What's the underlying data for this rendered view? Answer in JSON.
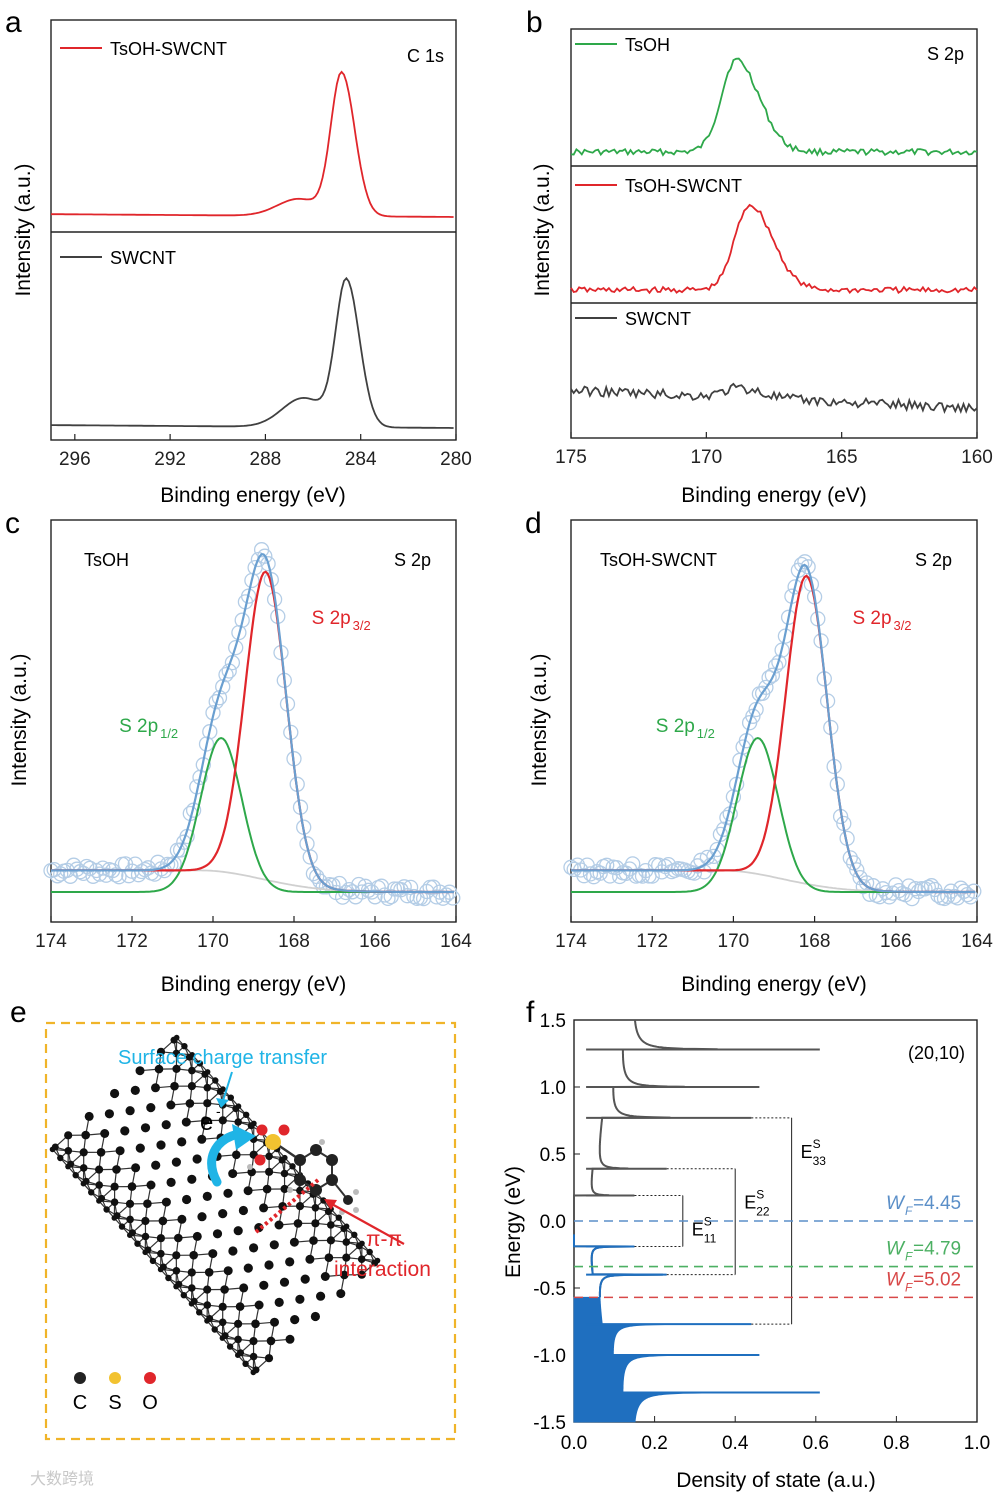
{
  "colors": {
    "red": "#e0262b",
    "green": "#2ea84a",
    "black": "#404040",
    "blue": "#6a9fd0",
    "envelope": "#cfcfcf",
    "fill_blue": "#1f6fbf",
    "dash_blue": "#5b8fc8",
    "dash_green": "#4cb063",
    "dash_red": "#d84848",
    "frame": "#f0b429",
    "cyan": "#1fb4e6"
  },
  "watermark": "大数跨境",
  "chart_data": [
    {
      "panel": "a",
      "type": "line",
      "title": "C 1s",
      "xlabel": "Binding energy (eV)",
      "ylabel": "Intensity (a.u.)",
      "xlim": [
        297,
        280
      ],
      "xticks": [
        296,
        292,
        288,
        284,
        280
      ],
      "series": [
        {
          "name": "TsOH-SWCNT",
          "color": "red",
          "peak_center": 284.8,
          "peak_height": 1.0,
          "shoulder_center": 286.6,
          "shoulder_height": 0.12
        },
        {
          "name": "SWCNT",
          "color": "black",
          "peak_center": 284.6,
          "peak_height": 1.0,
          "shoulder_center": 286.4,
          "shoulder_height": 0.2
        }
      ]
    },
    {
      "panel": "b",
      "type": "line",
      "title": "S 2p",
      "xlabel": "Binding energy (eV)",
      "ylabel": "Intensity (a.u.)",
      "xlim": [
        175,
        160
      ],
      "xticks": [
        175,
        170,
        165,
        160
      ],
      "series": [
        {
          "name": "TsOH",
          "color": "green",
          "peak_center": 168.9,
          "peak_height": 1.0
        },
        {
          "name": "TsOH-SWCNT",
          "color": "red",
          "peak_center": 168.4,
          "peak_height": 1.0
        },
        {
          "name": "SWCNT",
          "color": "black",
          "peak_center": 168.8,
          "peak_height": 0.25
        }
      ]
    },
    {
      "panel": "c",
      "type": "line",
      "sample": "TsOH",
      "title": "S 2p",
      "xlabel": "Binding energy (eV)",
      "ylabel": "Intensity (a.u.)",
      "xlim": [
        174,
        164
      ],
      "xticks": [
        174,
        172,
        170,
        168,
        166,
        164
      ],
      "components": [
        {
          "label_main": "S 2p",
          "label_sub": "3/2",
          "color": "red",
          "center": 168.7,
          "height": 1.0,
          "fwhm": 1.2
        },
        {
          "label_main": "S 2p",
          "label_sub": "1/2",
          "color": "green",
          "center": 169.8,
          "height": 0.5,
          "fwhm": 1.2
        }
      ]
    },
    {
      "panel": "d",
      "type": "line",
      "sample": "TsOH-SWCNT",
      "title": "S 2p",
      "xlabel": "Binding energy (eV)",
      "ylabel": "Intensity (a.u.)",
      "xlim": [
        174,
        164
      ],
      "xticks": [
        174,
        172,
        170,
        168,
        166,
        164
      ],
      "components": [
        {
          "label_main": "S 2p",
          "label_sub": "3/2",
          "color": "red",
          "center": 168.2,
          "height": 1.0,
          "fwhm": 1.2
        },
        {
          "label_main": "S 2p",
          "label_sub": "1/2",
          "color": "green",
          "center": 169.4,
          "height": 0.5,
          "fwhm": 1.2
        }
      ]
    },
    {
      "panel": "f",
      "type": "line",
      "title": "(20,10)",
      "xlabel": "Density of state (a.u.)",
      "ylabel": "Energy (eV)",
      "xlim": [
        0.0,
        1.0
      ],
      "ylim": [
        -1.5,
        1.5
      ],
      "xticks": [
        "0.0",
        "0.2",
        "0.4",
        "0.6",
        "0.8",
        "1.0"
      ],
      "yticks": [
        "1.5",
        "1.0",
        "0.5",
        "0.0",
        "-0.5",
        "-1.0",
        "-1.5"
      ],
      "van_hove_peaks": [
        {
          "energy": 1.28,
          "dos": 0.61
        },
        {
          "energy": 1.0,
          "dos": 0.46
        },
        {
          "energy": 0.77,
          "dos": 0.44
        },
        {
          "energy": 0.39,
          "dos": 0.23
        },
        {
          "energy": 0.19,
          "dos": 0.15
        },
        {
          "energy": -0.19,
          "dos": 0.15
        },
        {
          "energy": -0.4,
          "dos": 0.23
        },
        {
          "energy": -0.77,
          "dos": 0.44
        },
        {
          "energy": -1.0,
          "dos": 0.46
        },
        {
          "energy": -1.28,
          "dos": 0.61
        }
      ],
      "transitions": [
        {
          "label": "E",
          "sup": "S",
          "sub": "11",
          "from": 0.19,
          "to": -0.19,
          "x": 0.27
        },
        {
          "label": "E",
          "sup": "S",
          "sub": "22",
          "from": 0.39,
          "to": -0.4,
          "x": 0.4
        },
        {
          "label": "E",
          "sup": "S",
          "sub": "33",
          "from": 0.77,
          "to": -0.77,
          "x": 0.54
        }
      ],
      "fermi_levels": [
        {
          "label": "W",
          "sub": "F",
          "value": "=4.45",
          "energy": 0.0,
          "color": "dash_blue"
        },
        {
          "label": "W",
          "sub": "F",
          "value": "=4.79",
          "energy": -0.34,
          "color": "dash_green"
        },
        {
          "label": "W",
          "sub": "F",
          "value": "=5.02",
          "energy": -0.57,
          "color": "dash_red"
        }
      ]
    }
  ],
  "panel_e": {
    "label": "e",
    "surface_text": "Surface charge transfer",
    "electron": "e",
    "electron_sup": "-",
    "pi_text": "π-π",
    "interaction_text": "interaction",
    "legend": [
      "C",
      "S",
      "O"
    ]
  },
  "panel_labels": [
    "a",
    "b",
    "c",
    "d",
    "e",
    "f"
  ]
}
